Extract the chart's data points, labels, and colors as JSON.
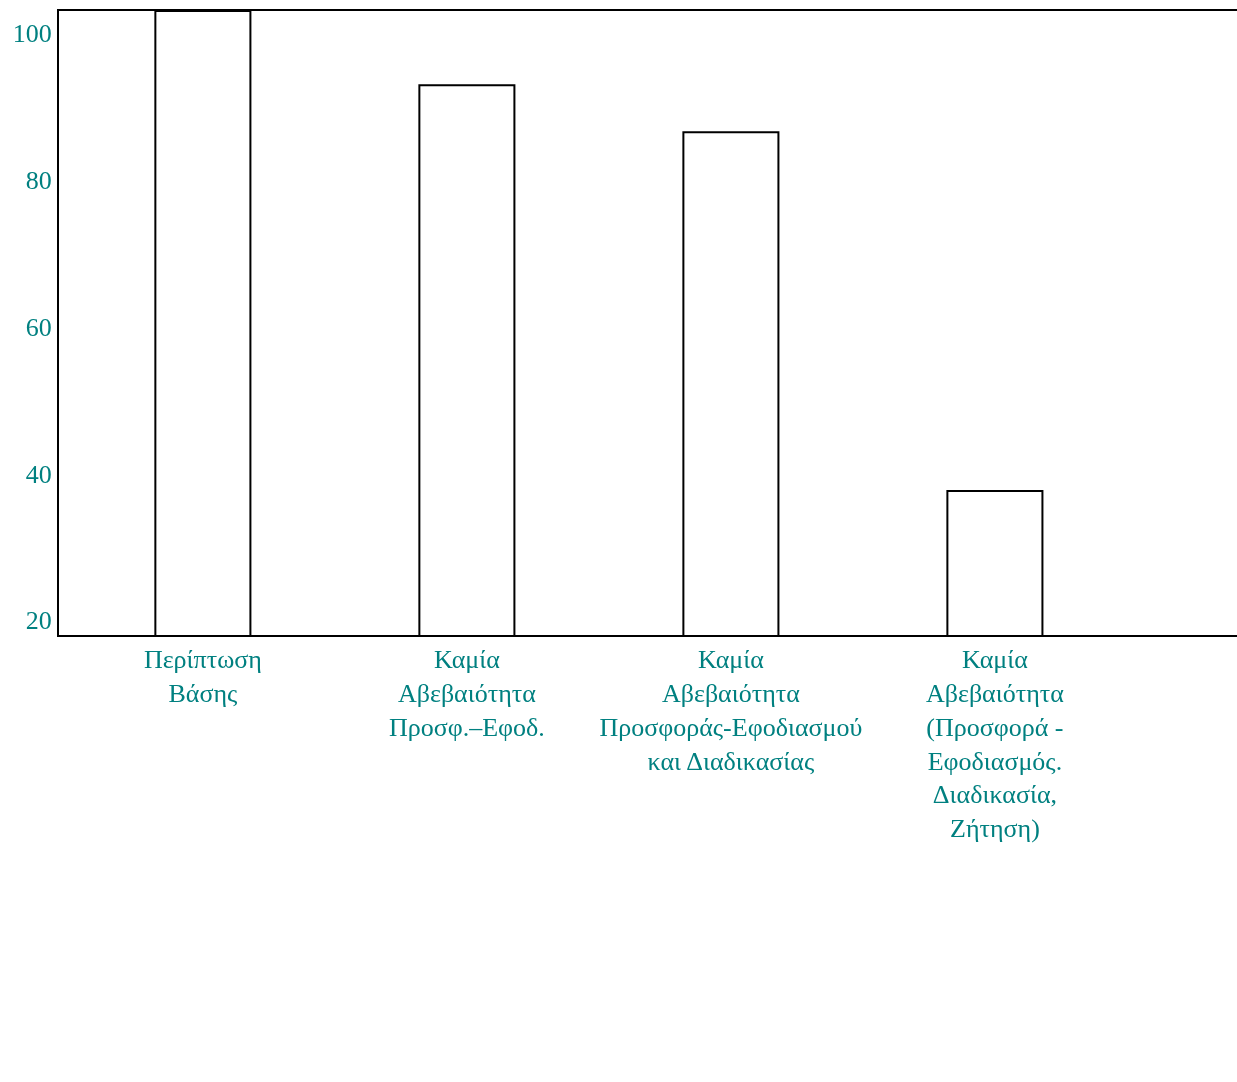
{
  "chart_data": {
    "type": "bar",
    "categories": [
      "Περίπτωση\nΒάσης",
      "Καμία\nΑβεβαιότητα\nΠροσφ.–Εφοδ.",
      "Καμία\nΑβεβαιότητα\nΠροσφοράς-Εφοδιασμού\nκαι Διαδικασίας",
      "Καμία\nΑβεβαιότητα\n(Προσφορά -\nΕφοδιασμός.\nΔιαδικασία,\nΖήτηση)"
    ],
    "values": [
      103,
      92.9,
      86.5,
      37.6
    ],
    "color": "#ffffff",
    "ylim": [
      18,
      103
    ],
    "yticks": [
      20,
      40,
      60,
      80,
      100
    ]
  }
}
